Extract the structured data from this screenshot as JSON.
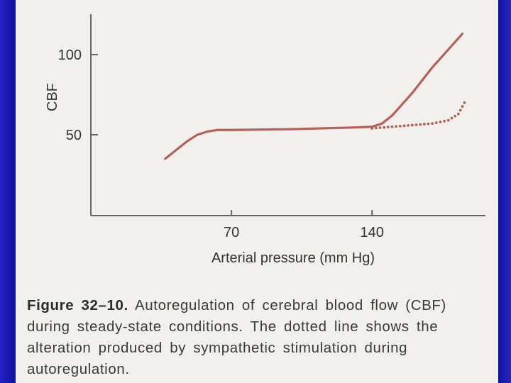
{
  "chart_data": {
    "type": "line",
    "xlabel": "Arterial pressure (mm Hg)",
    "ylabel": "CBF",
    "x_ticks": [
      70,
      140
    ],
    "y_ticks": [
      50,
      100
    ],
    "xlim": [
      0,
      200
    ],
    "ylim": [
      0,
      125
    ],
    "grid": false,
    "series": [
      {
        "style": "solid",
        "color": "#b5605a",
        "points": [
          [
            37,
            35
          ],
          [
            42,
            40
          ],
          [
            48,
            46
          ],
          [
            53,
            50
          ],
          [
            58,
            52
          ],
          [
            63,
            53
          ],
          [
            70,
            53
          ],
          [
            100,
            53.5
          ],
          [
            130,
            54.5
          ],
          [
            140,
            55
          ],
          [
            145,
            57
          ],
          [
            150,
            62
          ],
          [
            155,
            69
          ],
          [
            160,
            76
          ],
          [
            165,
            84
          ],
          [
            170,
            92
          ],
          [
            175,
            99
          ],
          [
            180,
            106
          ],
          [
            185,
            113
          ]
        ]
      },
      {
        "style": "dotted",
        "color": "#b5605a",
        "points": [
          [
            140,
            54
          ],
          [
            150,
            55
          ],
          [
            160,
            56
          ],
          [
            170,
            57
          ],
          [
            178,
            59
          ],
          [
            183,
            63
          ],
          [
            186,
            70
          ]
        ]
      }
    ]
  },
  "caption": {
    "label": "Figure 32–10.",
    "text": "Autoregulation of cerebral blood flow (CBF) during steady-state conditions. The dotted line shows the alteration produced by sympathetic stimulation during autoregulation."
  }
}
